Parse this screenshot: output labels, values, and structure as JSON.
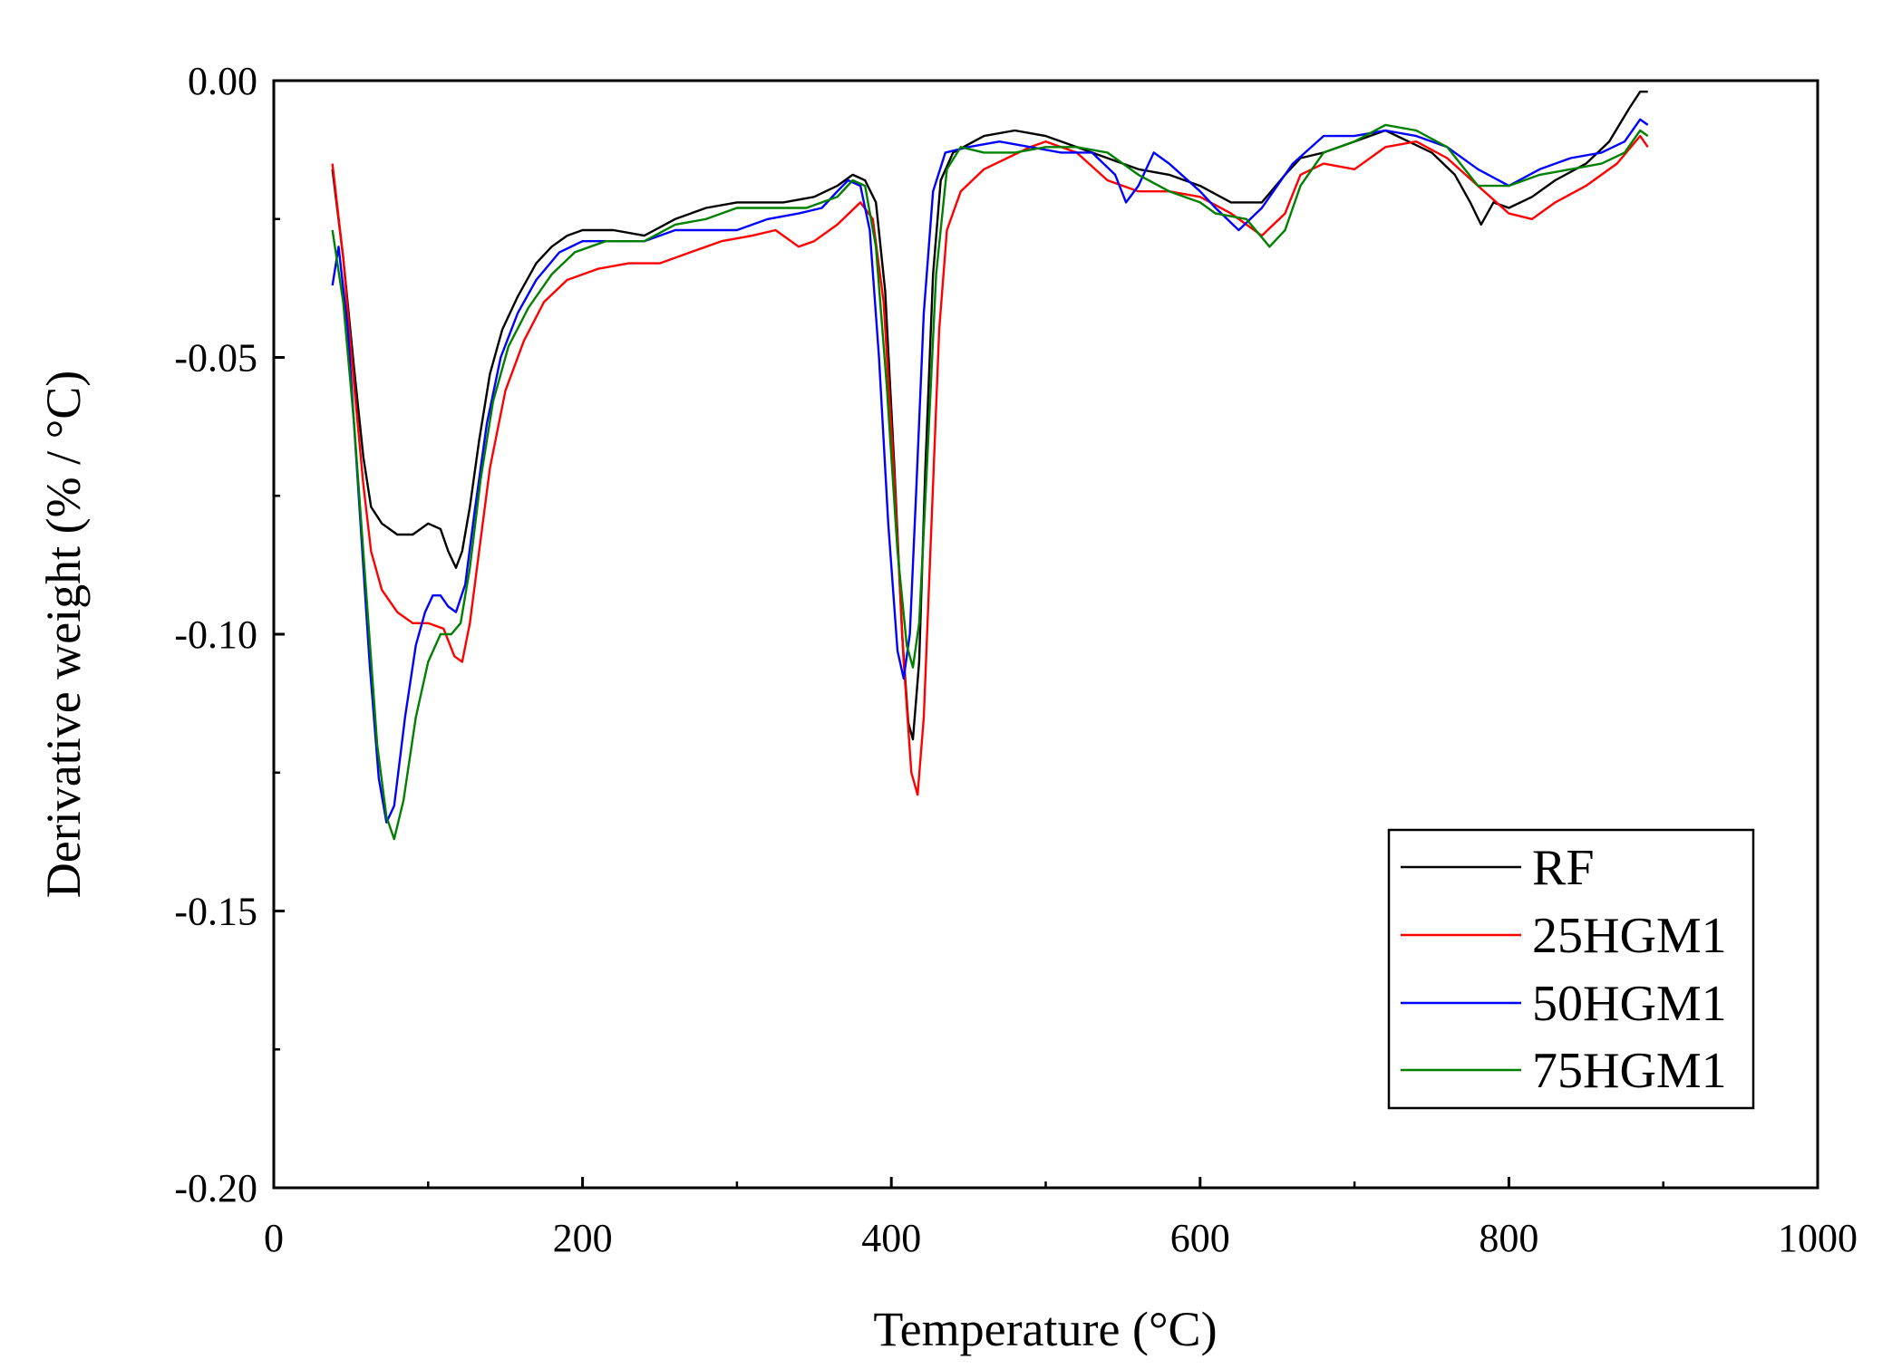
{
  "chart_data": {
    "type": "line",
    "title": "",
    "xlabel": "Temperature (°C)",
    "ylabel": "Derivative weight (% / °C)",
    "xlim": [
      0,
      1000
    ],
    "ylim": [
      -0.2,
      0.0
    ],
    "x_ticks": [
      0,
      200,
      400,
      600,
      800,
      1000
    ],
    "x_tick_labels": [
      "0",
      "200",
      "400",
      "600",
      "800",
      "1000"
    ],
    "y_ticks": [
      0.0,
      -0.05,
      -0.1,
      -0.15,
      -0.2
    ],
    "y_tick_labels": [
      "0.00",
      "-0.05",
      "-0.10",
      "-0.15",
      "-0.20"
    ],
    "grid": false,
    "legend_position": "bottom-right",
    "series": [
      {
        "name": "RF",
        "color": "#000000",
        "points": [
          [
            38,
            -0.016
          ],
          [
            45,
            -0.032
          ],
          [
            52,
            -0.052
          ],
          [
            58,
            -0.068
          ],
          [
            63,
            -0.077
          ],
          [
            70,
            -0.08
          ],
          [
            80,
            -0.082
          ],
          [
            90,
            -0.082
          ],
          [
            100,
            -0.08
          ],
          [
            108,
            -0.081
          ],
          [
            113,
            -0.085
          ],
          [
            118,
            -0.088
          ],
          [
            122,
            -0.085
          ],
          [
            127,
            -0.077
          ],
          [
            133,
            -0.065
          ],
          [
            140,
            -0.053
          ],
          [
            148,
            -0.045
          ],
          [
            158,
            -0.039
          ],
          [
            170,
            -0.033
          ],
          [
            180,
            -0.03
          ],
          [
            190,
            -0.028
          ],
          [
            200,
            -0.027
          ],
          [
            220,
            -0.027
          ],
          [
            240,
            -0.028
          ],
          [
            260,
            -0.025
          ],
          [
            280,
            -0.023
          ],
          [
            300,
            -0.022
          ],
          [
            330,
            -0.022
          ],
          [
            350,
            -0.021
          ],
          [
            365,
            -0.019
          ],
          [
            375,
            -0.017
          ],
          [
            383,
            -0.018
          ],
          [
            390,
            -0.022
          ],
          [
            396,
            -0.038
          ],
          [
            402,
            -0.07
          ],
          [
            407,
            -0.1
          ],
          [
            411,
            -0.116
          ],
          [
            414,
            -0.119
          ],
          [
            418,
            -0.105
          ],
          [
            422,
            -0.07
          ],
          [
            427,
            -0.035
          ],
          [
            432,
            -0.018
          ],
          [
            440,
            -0.013
          ],
          [
            460,
            -0.01
          ],
          [
            480,
            -0.009
          ],
          [
            500,
            -0.01
          ],
          [
            520,
            -0.012
          ],
          [
            540,
            -0.014
          ],
          [
            560,
            -0.016
          ],
          [
            580,
            -0.017
          ],
          [
            600,
            -0.019
          ],
          [
            620,
            -0.022
          ],
          [
            640,
            -0.022
          ],
          [
            655,
            -0.017
          ],
          [
            665,
            -0.014
          ],
          [
            680,
            -0.013
          ],
          [
            700,
            -0.011
          ],
          [
            720,
            -0.009
          ],
          [
            735,
            -0.011
          ],
          [
            750,
            -0.013
          ],
          [
            765,
            -0.017
          ],
          [
            775,
            -0.022
          ],
          [
            782,
            -0.026
          ],
          [
            790,
            -0.022
          ],
          [
            800,
            -0.023
          ],
          [
            815,
            -0.021
          ],
          [
            830,
            -0.018
          ],
          [
            850,
            -0.015
          ],
          [
            865,
            -0.011
          ],
          [
            878,
            -0.005
          ],
          [
            885,
            -0.002
          ],
          [
            890,
            -0.002
          ]
        ]
      },
      {
        "name": "25HGM1",
        "color": "#ff0000",
        "points": [
          [
            38,
            -0.015
          ],
          [
            45,
            -0.032
          ],
          [
            52,
            -0.055
          ],
          [
            58,
            -0.073
          ],
          [
            63,
            -0.085
          ],
          [
            70,
            -0.092
          ],
          [
            80,
            -0.096
          ],
          [
            90,
            -0.098
          ],
          [
            100,
            -0.098
          ],
          [
            110,
            -0.099
          ],
          [
            117,
            -0.104
          ],
          [
            122,
            -0.105
          ],
          [
            127,
            -0.098
          ],
          [
            133,
            -0.085
          ],
          [
            140,
            -0.07
          ],
          [
            150,
            -0.056
          ],
          [
            162,
            -0.047
          ],
          [
            175,
            -0.04
          ],
          [
            190,
            -0.036
          ],
          [
            210,
            -0.034
          ],
          [
            230,
            -0.033
          ],
          [
            250,
            -0.033
          ],
          [
            270,
            -0.031
          ],
          [
            290,
            -0.029
          ],
          [
            310,
            -0.028
          ],
          [
            325,
            -0.027
          ],
          [
            340,
            -0.03
          ],
          [
            350,
            -0.029
          ],
          [
            365,
            -0.026
          ],
          [
            380,
            -0.022
          ],
          [
            388,
            -0.025
          ],
          [
            395,
            -0.04
          ],
          [
            402,
            -0.072
          ],
          [
            408,
            -0.105
          ],
          [
            413,
            -0.125
          ],
          [
            417,
            -0.129
          ],
          [
            421,
            -0.115
          ],
          [
            426,
            -0.08
          ],
          [
            431,
            -0.045
          ],
          [
            436,
            -0.027
          ],
          [
            445,
            -0.02
          ],
          [
            460,
            -0.016
          ],
          [
            475,
            -0.014
          ],
          [
            490,
            -0.012
          ],
          [
            500,
            -0.011
          ],
          [
            520,
            -0.013
          ],
          [
            540,
            -0.018
          ],
          [
            560,
            -0.02
          ],
          [
            580,
            -0.02
          ],
          [
            600,
            -0.021
          ],
          [
            620,
            -0.024
          ],
          [
            640,
            -0.028
          ],
          [
            655,
            -0.024
          ],
          [
            665,
            -0.017
          ],
          [
            680,
            -0.015
          ],
          [
            700,
            -0.016
          ],
          [
            720,
            -0.012
          ],
          [
            740,
            -0.011
          ],
          [
            760,
            -0.014
          ],
          [
            780,
            -0.019
          ],
          [
            800,
            -0.024
          ],
          [
            815,
            -0.025
          ],
          [
            830,
            -0.022
          ],
          [
            850,
            -0.019
          ],
          [
            870,
            -0.015
          ],
          [
            885,
            -0.01
          ],
          [
            890,
            -0.012
          ]
        ]
      },
      {
        "name": "50HGM1",
        "color": "#0000ff",
        "points": [
          [
            38,
            -0.037
          ],
          [
            42,
            -0.03
          ],
          [
            48,
            -0.045
          ],
          [
            55,
            -0.075
          ],
          [
            62,
            -0.105
          ],
          [
            68,
            -0.126
          ],
          [
            73,
            -0.134
          ],
          [
            78,
            -0.131
          ],
          [
            85,
            -0.115
          ],
          [
            92,
            -0.102
          ],
          [
            98,
            -0.096
          ],
          [
            103,
            -0.093
          ],
          [
            108,
            -0.093
          ],
          [
            113,
            -0.095
          ],
          [
            118,
            -0.096
          ],
          [
            124,
            -0.091
          ],
          [
            130,
            -0.078
          ],
          [
            138,
            -0.062
          ],
          [
            147,
            -0.05
          ],
          [
            158,
            -0.042
          ],
          [
            170,
            -0.036
          ],
          [
            185,
            -0.031
          ],
          [
            200,
            -0.029
          ],
          [
            220,
            -0.029
          ],
          [
            240,
            -0.029
          ],
          [
            260,
            -0.027
          ],
          [
            280,
            -0.027
          ],
          [
            300,
            -0.027
          ],
          [
            320,
            -0.025
          ],
          [
            340,
            -0.024
          ],
          [
            355,
            -0.023
          ],
          [
            365,
            -0.02
          ],
          [
            372,
            -0.018
          ],
          [
            380,
            -0.019
          ],
          [
            386,
            -0.027
          ],
          [
            392,
            -0.05
          ],
          [
            398,
            -0.08
          ],
          [
            404,
            -0.103
          ],
          [
            408,
            -0.108
          ],
          [
            412,
            -0.1
          ],
          [
            416,
            -0.075
          ],
          [
            421,
            -0.042
          ],
          [
            427,
            -0.02
          ],
          [
            435,
            -0.013
          ],
          [
            450,
            -0.012
          ],
          [
            470,
            -0.011
          ],
          [
            490,
            -0.012
          ],
          [
            510,
            -0.013
          ],
          [
            530,
            -0.013
          ],
          [
            545,
            -0.017
          ],
          [
            552,
            -0.022
          ],
          [
            560,
            -0.019
          ],
          [
            570,
            -0.013
          ],
          [
            580,
            -0.015
          ],
          [
            600,
            -0.02
          ],
          [
            610,
            -0.023
          ],
          [
            625,
            -0.027
          ],
          [
            640,
            -0.023
          ],
          [
            660,
            -0.015
          ],
          [
            680,
            -0.01
          ],
          [
            700,
            -0.01
          ],
          [
            720,
            -0.009
          ],
          [
            740,
            -0.01
          ],
          [
            760,
            -0.012
          ],
          [
            780,
            -0.016
          ],
          [
            800,
            -0.019
          ],
          [
            820,
            -0.016
          ],
          [
            840,
            -0.014
          ],
          [
            860,
            -0.013
          ],
          [
            875,
            -0.011
          ],
          [
            885,
            -0.007
          ],
          [
            890,
            -0.008
          ]
        ]
      },
      {
        "name": "75HGM1",
        "color": "#008000",
        "points": [
          [
            38,
            -0.027
          ],
          [
            45,
            -0.04
          ],
          [
            52,
            -0.062
          ],
          [
            60,
            -0.093
          ],
          [
            67,
            -0.12
          ],
          [
            73,
            -0.133
          ],
          [
            78,
            -0.137
          ],
          [
            84,
            -0.13
          ],
          [
            92,
            -0.115
          ],
          [
            100,
            -0.105
          ],
          [
            108,
            -0.1
          ],
          [
            115,
            -0.1
          ],
          [
            121,
            -0.098
          ],
          [
            127,
            -0.088
          ],
          [
            134,
            -0.072
          ],
          [
            142,
            -0.058
          ],
          [
            152,
            -0.048
          ],
          [
            165,
            -0.041
          ],
          [
            180,
            -0.035
          ],
          [
            195,
            -0.031
          ],
          [
            215,
            -0.029
          ],
          [
            240,
            -0.029
          ],
          [
            260,
            -0.026
          ],
          [
            280,
            -0.025
          ],
          [
            300,
            -0.023
          ],
          [
            320,
            -0.023
          ],
          [
            345,
            -0.023
          ],
          [
            365,
            -0.021
          ],
          [
            375,
            -0.018
          ],
          [
            383,
            -0.019
          ],
          [
            390,
            -0.03
          ],
          [
            397,
            -0.055
          ],
          [
            404,
            -0.085
          ],
          [
            410,
            -0.102
          ],
          [
            414,
            -0.106
          ],
          [
            418,
            -0.098
          ],
          [
            423,
            -0.07
          ],
          [
            429,
            -0.035
          ],
          [
            436,
            -0.016
          ],
          [
            445,
            -0.012
          ],
          [
            460,
            -0.013
          ],
          [
            480,
            -0.013
          ],
          [
            500,
            -0.012
          ],
          [
            520,
            -0.012
          ],
          [
            540,
            -0.013
          ],
          [
            560,
            -0.017
          ],
          [
            580,
            -0.02
          ],
          [
            600,
            -0.022
          ],
          [
            610,
            -0.024
          ],
          [
            630,
            -0.025
          ],
          [
            645,
            -0.03
          ],
          [
            655,
            -0.027
          ],
          [
            665,
            -0.019
          ],
          [
            680,
            -0.013
          ],
          [
            700,
            -0.011
          ],
          [
            720,
            -0.008
          ],
          [
            740,
            -0.009
          ],
          [
            760,
            -0.012
          ],
          [
            780,
            -0.019
          ],
          [
            800,
            -0.019
          ],
          [
            820,
            -0.017
          ],
          [
            840,
            -0.016
          ],
          [
            860,
            -0.015
          ],
          [
            875,
            -0.013
          ],
          [
            885,
            -0.009
          ],
          [
            890,
            -0.01
          ]
        ]
      }
    ]
  }
}
